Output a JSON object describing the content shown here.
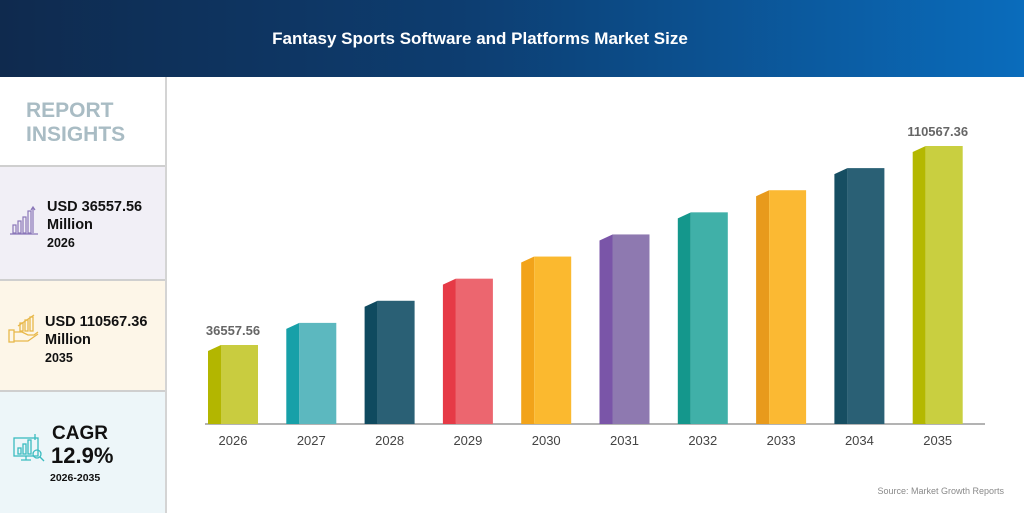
{
  "header": {
    "title": "Fantasy Sports Software and Platforms Market Size"
  },
  "sidebar": {
    "heading_line1": "REPORT",
    "heading_line2": "INSIGHTS",
    "card1": {
      "value": "USD 36557.56",
      "unit": "Million",
      "year": "2026",
      "icon": "bar-chart-arrow-icon"
    },
    "card2": {
      "value": "USD 110567.36",
      "unit": "Million",
      "year": "2035",
      "icon": "hand-chart-icon"
    },
    "card3": {
      "label": "CAGR",
      "value": "12.9%",
      "period": "2026-2035",
      "icon": "monitor-analytics-icon"
    }
  },
  "source": "Source: Market Growth Reports",
  "chart_data": {
    "type": "bar",
    "categories": [
      "2026",
      "2027",
      "2028",
      "2029",
      "2030",
      "2031",
      "2032",
      "2033",
      "2034",
      "2035"
    ],
    "values": [
      36557.56,
      44781,
      53004,
      61227,
      69450,
      77674,
      85897,
      94121,
      102344,
      110567.36
    ],
    "data_labels": {
      "0": "36557.56",
      "9": "110567.36"
    },
    "colors": [
      [
        "#c9cc3f",
        "#b3b600"
      ],
      [
        "#5cb8bf",
        "#17a0a8"
      ],
      [
        "#2a6075",
        "#0f4a5f"
      ],
      [
        "#ec666f",
        "#e63a46"
      ],
      [
        "#fbb92f",
        "#f2a319"
      ],
      [
        "#8e79b0",
        "#7a55a8"
      ],
      [
        "#40b0a8",
        "#14978c"
      ],
      [
        "#fbb933",
        "#e89a1c"
      ],
      [
        "#2a6075",
        "#164e62"
      ],
      [
        "#c9cf40",
        "#b4b800"
      ]
    ],
    "grid": false,
    "legend": "none"
  }
}
